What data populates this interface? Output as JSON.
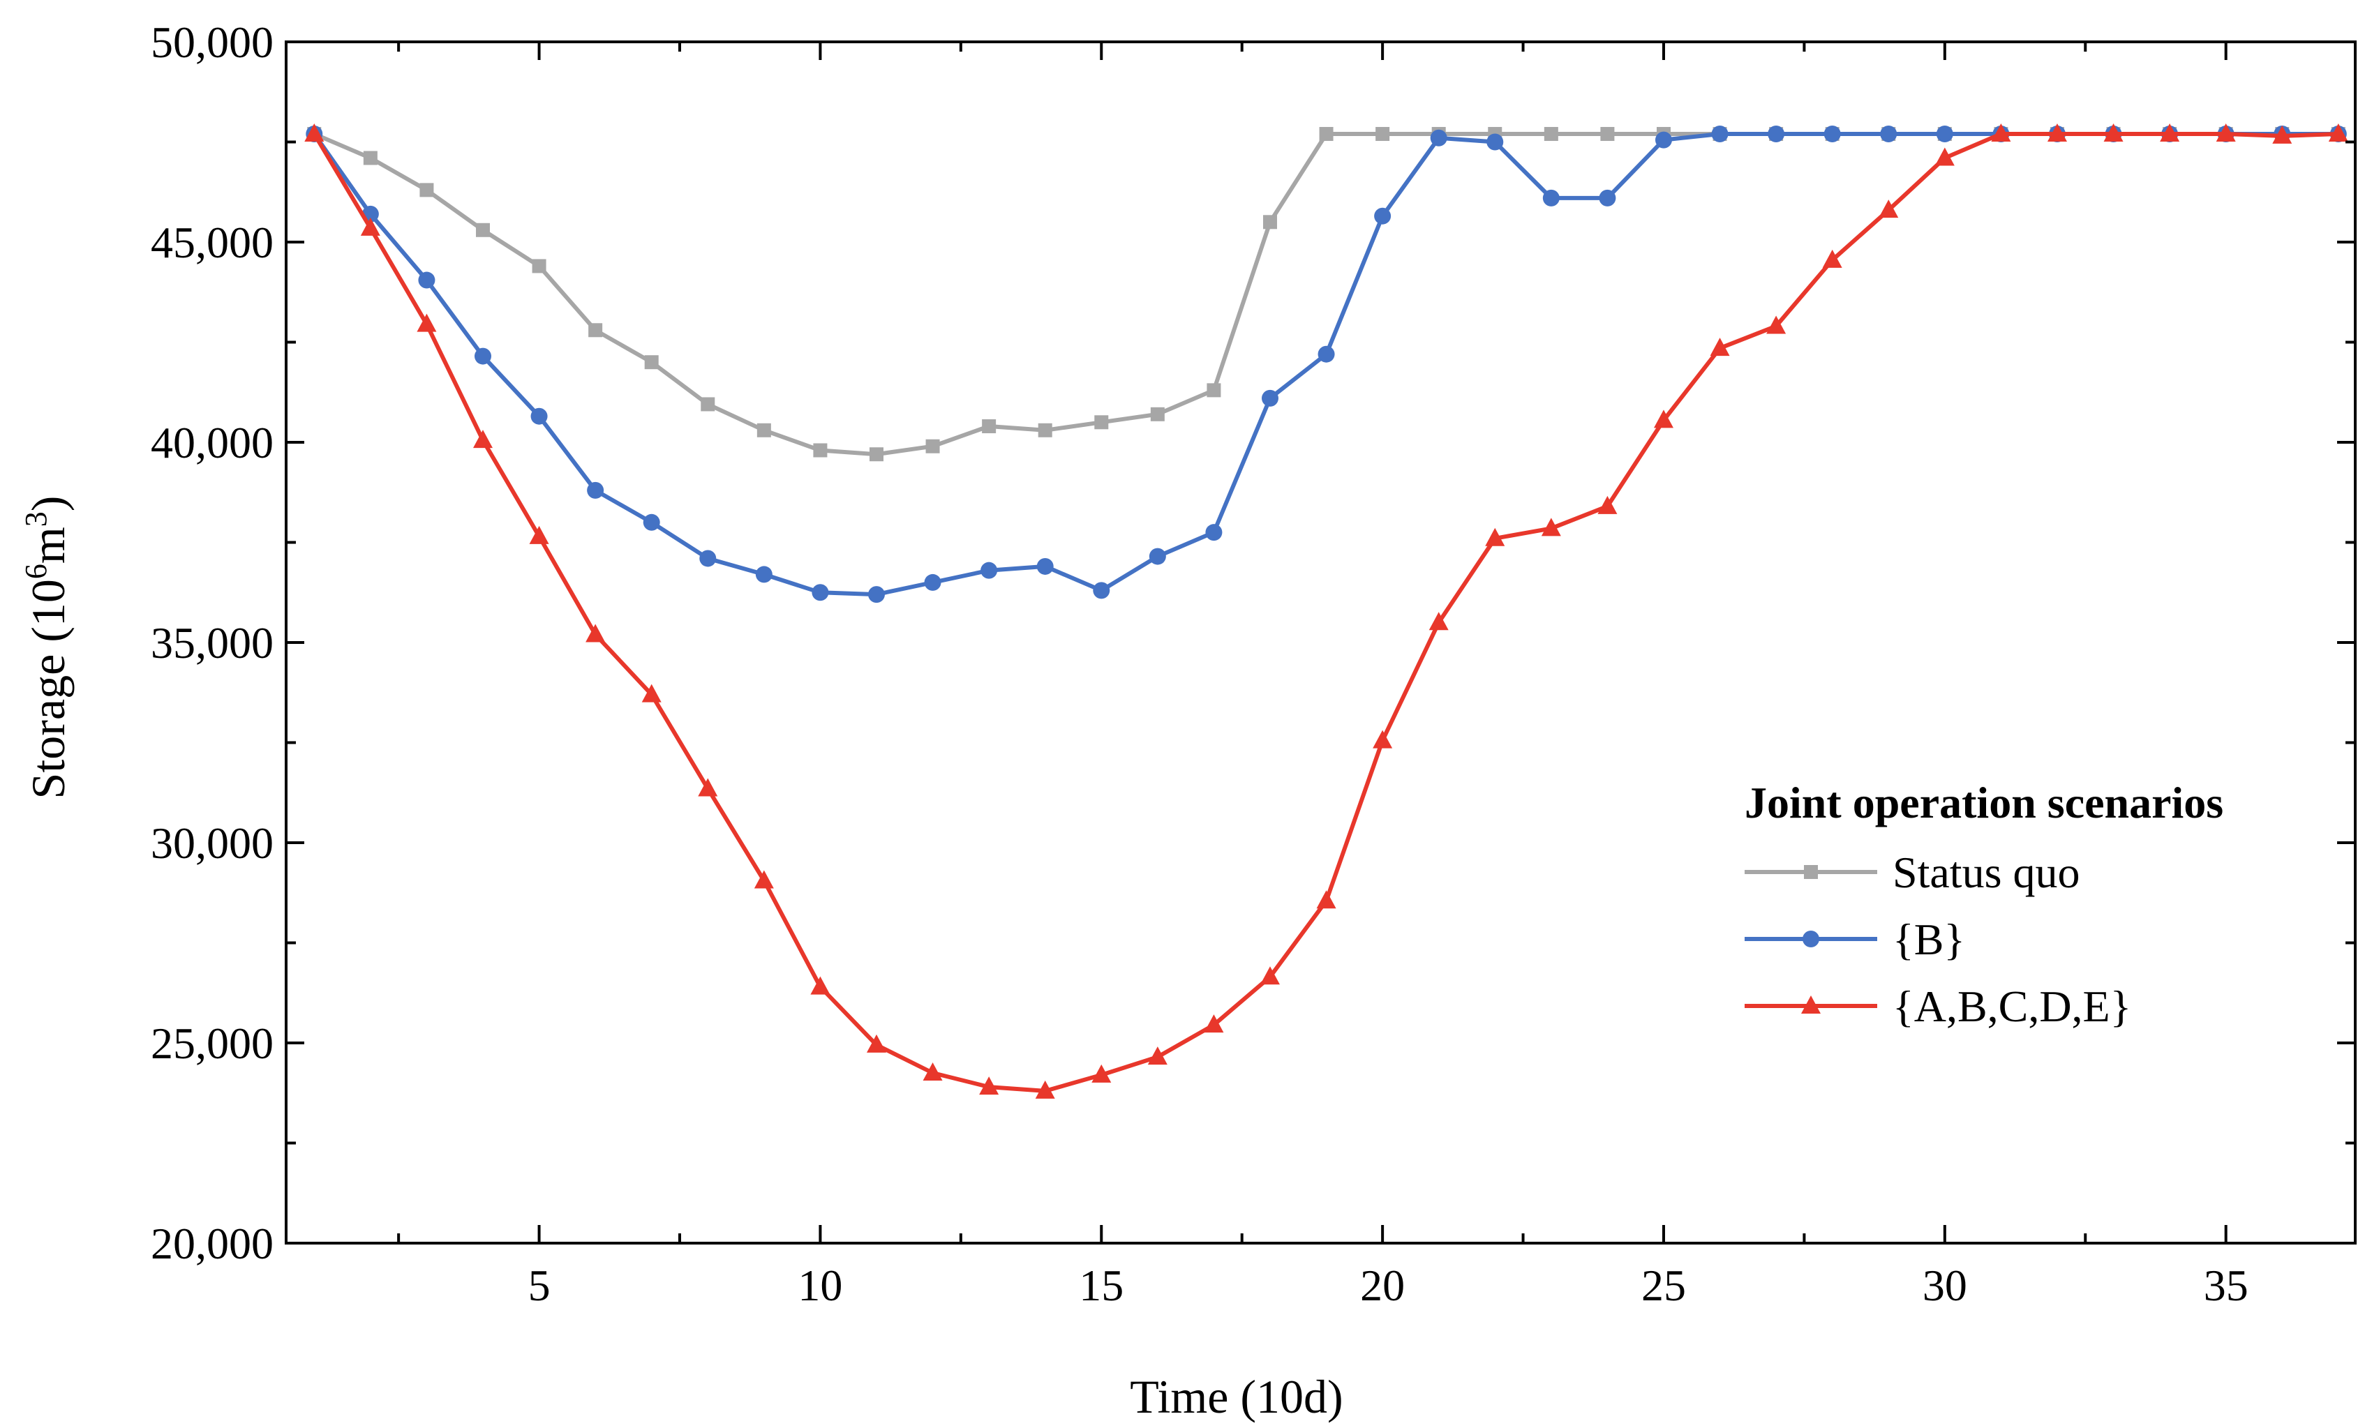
{
  "chart_data": {
    "type": "line",
    "title": "",
    "xlabel": "Time (10d)",
    "ylabel_main": "Storage (10",
    "ylabel_sup1": "6",
    "ylabel_mid": "m",
    "ylabel_sup2": "3",
    "ylabel_end": ")",
    "xlim": [
      0.5,
      37.3
    ],
    "ylim": [
      20000,
      50000
    ],
    "x_ticks": [
      5,
      10,
      15,
      20,
      25,
      30,
      35
    ],
    "x_tick_labels": [
      "5",
      "10",
      "15",
      "20",
      "25",
      "30",
      "35"
    ],
    "y_ticks": [
      20000,
      25000,
      30000,
      35000,
      40000,
      45000,
      50000
    ],
    "y_tick_labels": [
      "20,000",
      "25,000",
      "30,000",
      "35,000",
      "40,000",
      "45,000",
      "50,000"
    ],
    "legend_title": "Joint operation scenarios",
    "legend_position": "center-right",
    "x": [
      1,
      2,
      3,
      4,
      5,
      6,
      7,
      8,
      9,
      10,
      11,
      12,
      13,
      14,
      15,
      16,
      17,
      18,
      19,
      20,
      21,
      22,
      23,
      24,
      25,
      26,
      27,
      28,
      29,
      30,
      31,
      32,
      33,
      34,
      35,
      36,
      37
    ],
    "series": [
      {
        "name": "Status quo",
        "color": "#a6a6a6",
        "marker": "square",
        "values": [
          47700,
          47100,
          46300,
          45300,
          44400,
          42800,
          42000,
          40950,
          40300,
          39800,
          39700,
          39900,
          40400,
          40300,
          40500,
          40700,
          41300,
          45500,
          47700,
          47700,
          47700,
          47700,
          47700,
          47700,
          47700,
          47700,
          47700,
          47700,
          47700,
          47700,
          47700,
          47700,
          47700,
          47700,
          47700,
          47700,
          47700
        ]
      },
      {
        "name": "{B}",
        "color": "#4472c4",
        "marker": "circle",
        "values": [
          47700,
          45700,
          44050,
          42150,
          40650,
          38800,
          38000,
          37100,
          36700,
          36250,
          36200,
          36500,
          36800,
          36900,
          36300,
          37150,
          37750,
          41100,
          42200,
          45650,
          47600,
          47500,
          46100,
          46100,
          47550,
          47700,
          47700,
          47700,
          47700,
          47700,
          47700,
          47700,
          47700,
          47700,
          47700,
          47700,
          47700
        ]
      },
      {
        "name": "{A,B,C,D,E}",
        "color": "#e8372b",
        "marker": "triangle",
        "values": [
          47700,
          45350,
          42950,
          40050,
          37650,
          35200,
          33700,
          31350,
          29050,
          26400,
          24950,
          24250,
          23900,
          23800,
          24200,
          24650,
          25450,
          26650,
          28550,
          32550,
          35500,
          37600,
          37850,
          38400,
          40550,
          42350,
          42900,
          44550,
          45800,
          47100,
          47700,
          47700,
          47700,
          47700,
          47700,
          47650,
          47700
        ]
      }
    ]
  }
}
